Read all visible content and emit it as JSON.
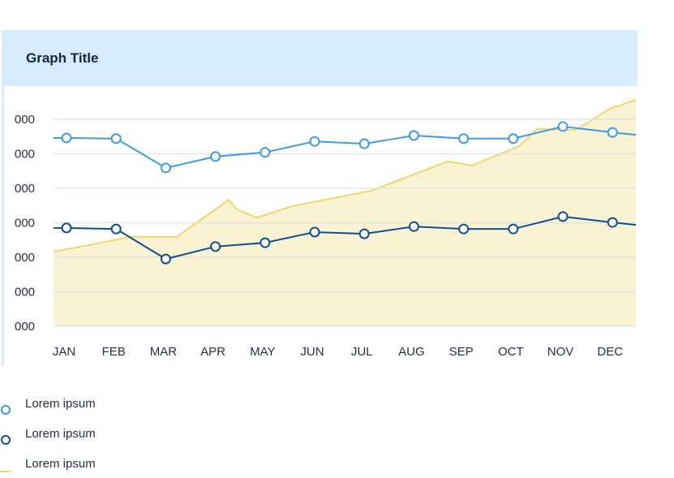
{
  "title": "Graph Title",
  "chart_data": {
    "type": "line",
    "title": "Graph Title",
    "xlabel": "",
    "ylabel": "",
    "categories": [
      "JAN",
      "FEB",
      "MAR",
      "APR",
      "MAY",
      "JUN",
      "JUL",
      "AUG",
      "SEP",
      "OCT",
      "NOV",
      "DEC"
    ],
    "yticks": [
      0,
      1,
      2,
      3,
      4,
      5,
      6
    ],
    "ytick_labels": [
      "000",
      "000",
      "000",
      "000",
      "000",
      "000",
      "000"
    ],
    "ylim": [
      0,
      6
    ],
    "grid": true,
    "legend_position": "bottom-left",
    "series": [
      {
        "name": "Lorem ipsum",
        "kind": "line-markers",
        "color": "#3b9be6",
        "values": [
          5.46,
          5.44,
          4.59,
          4.92,
          5.04,
          5.36,
          5.29,
          5.53,
          5.44,
          5.44,
          5.79,
          5.62
        ]
      },
      {
        "name": "Lorem ipsum",
        "kind": "line-markers",
        "color": "#0d4f8f",
        "values": [
          2.85,
          2.82,
          1.95,
          2.31,
          2.42,
          2.73,
          2.68,
          2.89,
          2.82,
          2.82,
          3.18,
          3.01
        ]
      },
      {
        "name": "Lorem ipsum",
        "kind": "area",
        "color": "#f3d66b",
        "fill": "#faf3d3",
        "points": [
          [
            -0.26,
            2.16
          ],
          [
            0.29,
            2.31
          ],
          [
            1.27,
            2.59
          ],
          [
            2.22,
            2.59
          ],
          [
            3.27,
            3.67
          ],
          [
            3.43,
            3.39
          ],
          [
            3.84,
            3.15
          ],
          [
            4.54,
            3.48
          ],
          [
            6.14,
            3.93
          ],
          [
            7.68,
            4.78
          ],
          [
            8.17,
            4.66
          ],
          [
            9.12,
            5.22
          ],
          [
            9.48,
            5.72
          ],
          [
            10.26,
            5.69
          ],
          [
            10.95,
            6.31
          ],
          [
            11.47,
            6.56
          ]
        ]
      }
    ]
  }
}
